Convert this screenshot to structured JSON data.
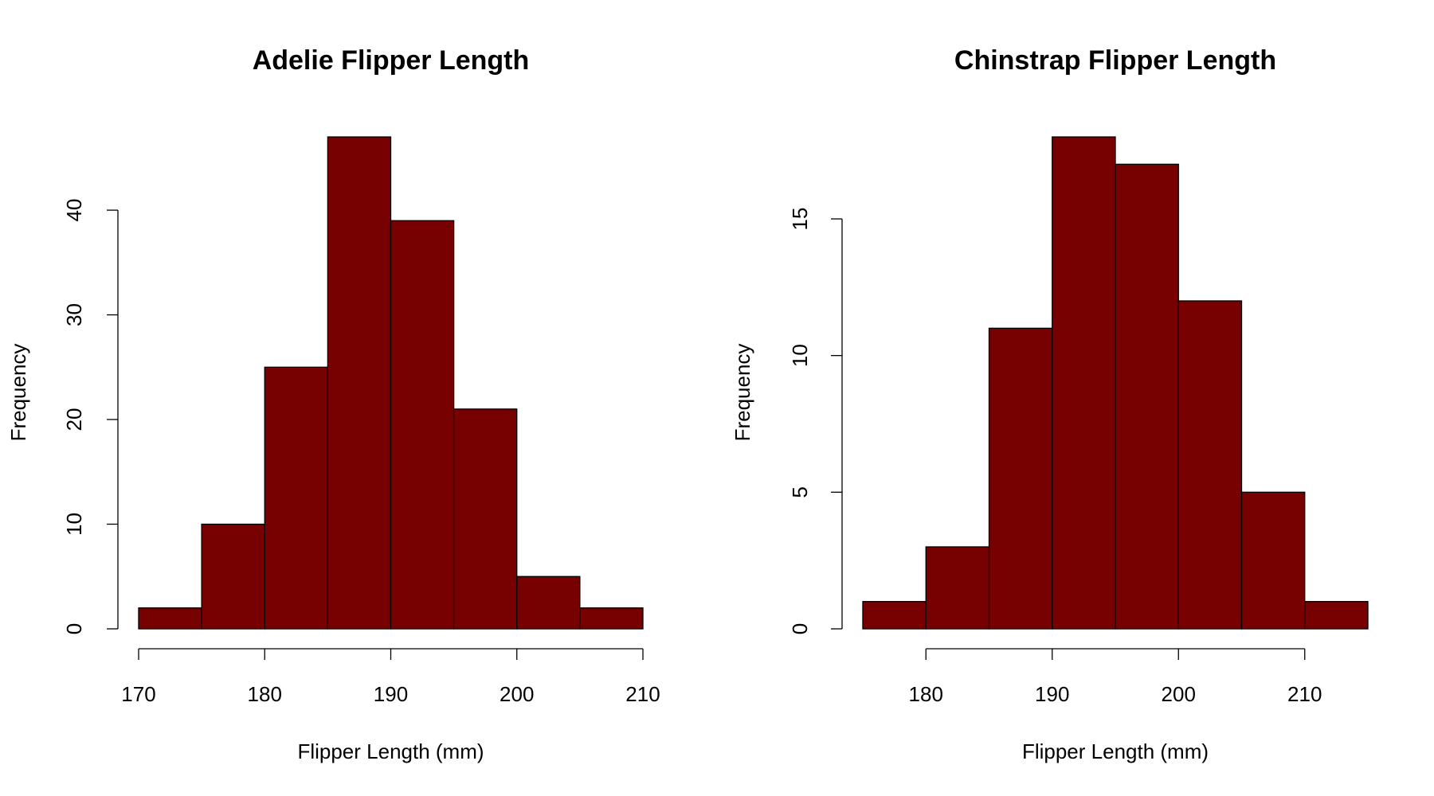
{
  "chart_data": [
    {
      "type": "histogram",
      "title": "Adelie Flipper Length",
      "x_label": "Flipper Length (mm)",
      "y_label": "Frequency",
      "bins": [
        170,
        175,
        180,
        185,
        190,
        195,
        200,
        205,
        210
      ],
      "values": [
        2,
        10,
        25,
        47,
        39,
        21,
        5,
        2
      ],
      "color": "#770000",
      "xlim": [
        170,
        210
      ],
      "xticks": [
        170,
        180,
        190,
        200,
        210
      ],
      "ylim": [
        0,
        47
      ],
      "yticks": [
        0,
        10,
        20,
        30,
        40
      ]
    },
    {
      "type": "histogram",
      "title": "Chinstrap Flipper Length",
      "x_label": "Flipper Length (mm)",
      "y_label": "Frequency",
      "bins": [
        175,
        180,
        185,
        190,
        195,
        200,
        205,
        210,
        215
      ],
      "values": [
        1,
        3,
        11,
        18,
        17,
        12,
        5,
        1
      ],
      "color": "#770000",
      "xlim": [
        175,
        215
      ],
      "xticks": [
        180,
        190,
        200,
        210
      ],
      "ylim": [
        0,
        18
      ],
      "yticks": [
        0,
        5,
        10,
        15
      ]
    }
  ]
}
